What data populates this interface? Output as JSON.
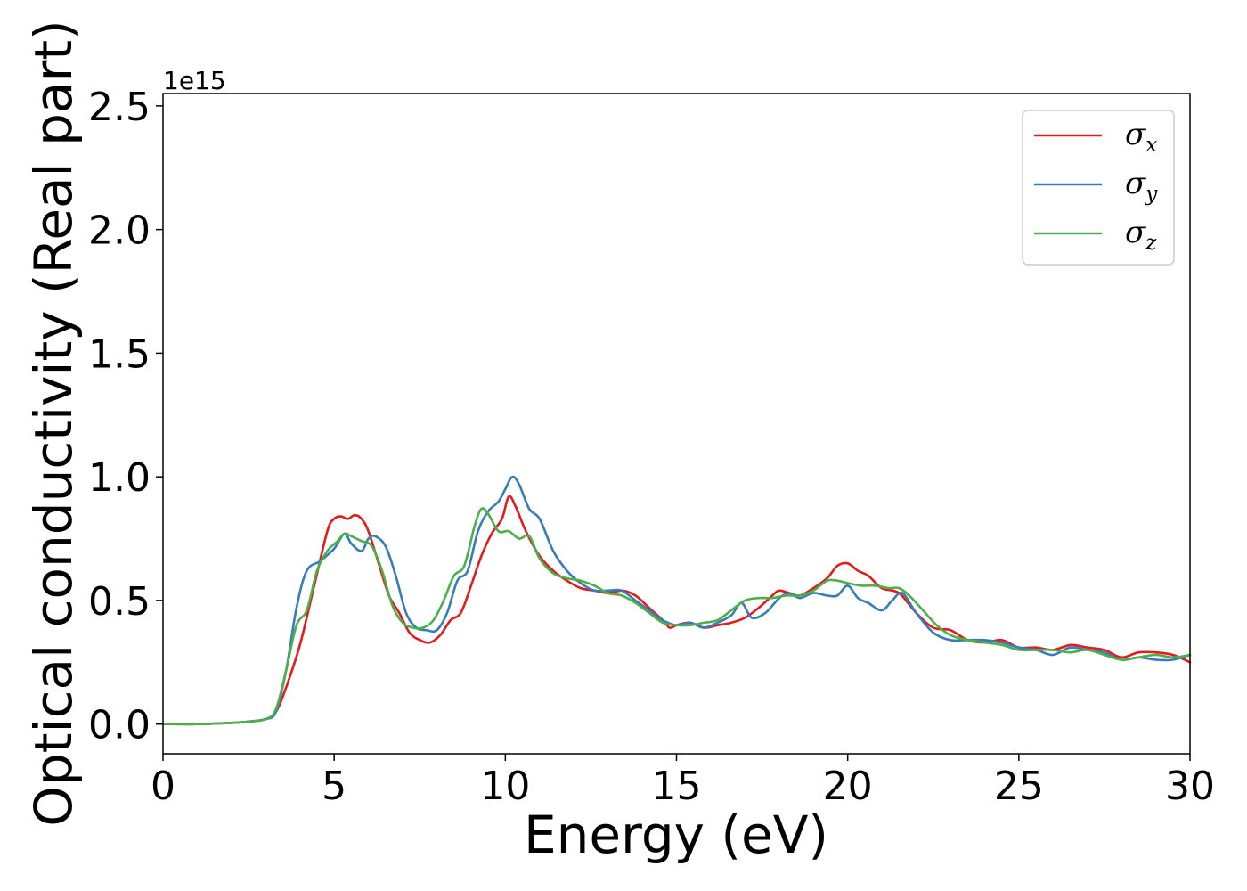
{
  "chart_data": {
    "type": "line",
    "xlabel": "Energy (eV)",
    "ylabel": "Optical conductivity (Real part)",
    "y_offset_label": "1e15",
    "xlim": [
      0,
      30
    ],
    "ylim": [
      -0.12,
      2.55
    ],
    "xticks": [
      0,
      5,
      10,
      15,
      20,
      25,
      30
    ],
    "yticks": [
      0.0,
      0.5,
      1.0,
      1.5,
      2.0,
      2.5
    ],
    "xtick_labels": [
      "0",
      "5",
      "10",
      "15",
      "20",
      "25",
      "30"
    ],
    "ytick_labels": [
      "0.0",
      "0.5",
      "1.0",
      "1.5",
      "2.0",
      "2.5"
    ],
    "grid": false,
    "legend_position": "top-right",
    "series": [
      {
        "name": "σx",
        "symbol": "σ",
        "subscript": "x",
        "color": "#e41a1c",
        "x": [
          0,
          1,
          2,
          2.5,
          3.0,
          3.3,
          3.6,
          4.0,
          4.4,
          4.8,
          5.0,
          5.2,
          5.4,
          5.6,
          5.8,
          6.0,
          6.3,
          6.6,
          6.9,
          7.2,
          7.5,
          7.8,
          8.1,
          8.4,
          8.7,
          9.0,
          9.3,
          9.6,
          9.9,
          10.1,
          10.3,
          10.6,
          11.0,
          11.4,
          11.8,
          12.2,
          12.6,
          13.0,
          13.4,
          13.8,
          14.2,
          14.6,
          14.8,
          15.0,
          15.4,
          15.8,
          16.2,
          16.6,
          17.0,
          17.4,
          17.8,
          18.0,
          18.3,
          18.6,
          19.0,
          19.4,
          19.7,
          20.0,
          20.3,
          20.6,
          21.0,
          21.5,
          22.0,
          22.5,
          23.0,
          23.5,
          24.0,
          24.5,
          25.0,
          25.5,
          26.0,
          26.5,
          27.0,
          27.5,
          28.0,
          28.5,
          29.0,
          29.5,
          30.0
        ],
        "y": [
          0.0,
          0.0,
          0.005,
          0.01,
          0.02,
          0.05,
          0.15,
          0.32,
          0.55,
          0.78,
          0.83,
          0.84,
          0.83,
          0.845,
          0.83,
          0.78,
          0.65,
          0.52,
          0.45,
          0.37,
          0.34,
          0.33,
          0.36,
          0.42,
          0.45,
          0.56,
          0.68,
          0.77,
          0.83,
          0.92,
          0.88,
          0.78,
          0.68,
          0.62,
          0.58,
          0.55,
          0.54,
          0.53,
          0.54,
          0.52,
          0.47,
          0.42,
          0.39,
          0.4,
          0.41,
          0.39,
          0.4,
          0.41,
          0.43,
          0.47,
          0.52,
          0.54,
          0.53,
          0.52,
          0.55,
          0.59,
          0.64,
          0.65,
          0.62,
          0.6,
          0.55,
          0.53,
          0.45,
          0.39,
          0.38,
          0.34,
          0.33,
          0.34,
          0.31,
          0.31,
          0.3,
          0.32,
          0.31,
          0.3,
          0.27,
          0.29,
          0.29,
          0.28,
          0.25
        ]
      },
      {
        "name": "σy",
        "symbol": "σ",
        "subscript": "y",
        "color": "#377eb8",
        "x": [
          0,
          1,
          2,
          2.5,
          3.0,
          3.3,
          3.6,
          3.9,
          4.2,
          4.6,
          5.0,
          5.3,
          5.5,
          5.8,
          6.0,
          6.2,
          6.5,
          6.8,
          7.1,
          7.4,
          7.7,
          8.0,
          8.3,
          8.6,
          8.9,
          9.2,
          9.5,
          9.8,
          10.0,
          10.2,
          10.4,
          10.7,
          11.0,
          11.4,
          11.8,
          12.2,
          12.6,
          13.0,
          13.4,
          13.8,
          14.2,
          14.6,
          15.0,
          15.4,
          15.8,
          16.2,
          16.6,
          16.9,
          17.2,
          17.6,
          18.0,
          18.3,
          18.6,
          19.0,
          19.4,
          19.7,
          20.0,
          20.3,
          20.6,
          21.0,
          21.3,
          21.6,
          22.0,
          22.5,
          23.0,
          23.5,
          24.0,
          24.5,
          25.0,
          25.5,
          26.0,
          26.5,
          27.0,
          27.5,
          28.0,
          28.5,
          29.0,
          29.5,
          30.0
        ],
        "y": [
          0.0,
          0.0,
          0.005,
          0.01,
          0.02,
          0.05,
          0.22,
          0.47,
          0.62,
          0.66,
          0.71,
          0.77,
          0.73,
          0.7,
          0.75,
          0.76,
          0.72,
          0.6,
          0.45,
          0.39,
          0.38,
          0.38,
          0.45,
          0.58,
          0.62,
          0.78,
          0.86,
          0.9,
          0.95,
          1.0,
          0.97,
          0.87,
          0.83,
          0.7,
          0.62,
          0.57,
          0.54,
          0.54,
          0.54,
          0.5,
          0.46,
          0.42,
          0.4,
          0.41,
          0.39,
          0.41,
          0.44,
          0.49,
          0.43,
          0.45,
          0.51,
          0.53,
          0.51,
          0.53,
          0.52,
          0.52,
          0.56,
          0.51,
          0.49,
          0.46,
          0.5,
          0.53,
          0.45,
          0.37,
          0.34,
          0.34,
          0.34,
          0.33,
          0.31,
          0.3,
          0.28,
          0.31,
          0.3,
          0.29,
          0.26,
          0.27,
          0.26,
          0.26,
          0.28
        ]
      },
      {
        "name": "σz",
        "symbol": "σ",
        "subscript": "z",
        "color": "#4daf4a",
        "x": [
          0,
          1,
          2,
          2.5,
          3.0,
          3.3,
          3.6,
          3.9,
          4.2,
          4.5,
          4.8,
          5.1,
          5.3,
          5.5,
          5.8,
          6.1,
          6.4,
          6.7,
          7.0,
          7.3,
          7.6,
          7.9,
          8.2,
          8.5,
          8.8,
          9.1,
          9.3,
          9.5,
          9.8,
          10.1,
          10.4,
          10.7,
          11.0,
          11.4,
          11.8,
          12.2,
          12.6,
          13.0,
          13.4,
          13.8,
          14.2,
          14.6,
          15.0,
          15.4,
          15.8,
          16.2,
          16.6,
          17.0,
          17.4,
          17.8,
          18.2,
          18.6,
          19.0,
          19.4,
          19.7,
          20.0,
          20.4,
          20.8,
          21.2,
          21.5,
          21.8,
          22.2,
          22.6,
          23.0,
          23.5,
          24.0,
          24.5,
          25.0,
          25.5,
          26.0,
          26.5,
          27.0,
          27.5,
          28.0,
          28.5,
          29.0,
          29.5,
          30.0
        ],
        "y": [
          0.0,
          0.0,
          0.005,
          0.01,
          0.02,
          0.06,
          0.22,
          0.4,
          0.46,
          0.62,
          0.7,
          0.74,
          0.77,
          0.76,
          0.74,
          0.72,
          0.62,
          0.48,
          0.41,
          0.39,
          0.39,
          0.42,
          0.5,
          0.6,
          0.64,
          0.8,
          0.87,
          0.85,
          0.78,
          0.78,
          0.75,
          0.76,
          0.67,
          0.61,
          0.59,
          0.58,
          0.56,
          0.53,
          0.52,
          0.49,
          0.45,
          0.41,
          0.4,
          0.4,
          0.41,
          0.42,
          0.46,
          0.5,
          0.51,
          0.51,
          0.52,
          0.52,
          0.54,
          0.58,
          0.58,
          0.57,
          0.56,
          0.56,
          0.55,
          0.55,
          0.52,
          0.46,
          0.4,
          0.36,
          0.34,
          0.33,
          0.32,
          0.3,
          0.3,
          0.3,
          0.29,
          0.3,
          0.28,
          0.26,
          0.27,
          0.28,
          0.27,
          0.28
        ]
      }
    ]
  }
}
